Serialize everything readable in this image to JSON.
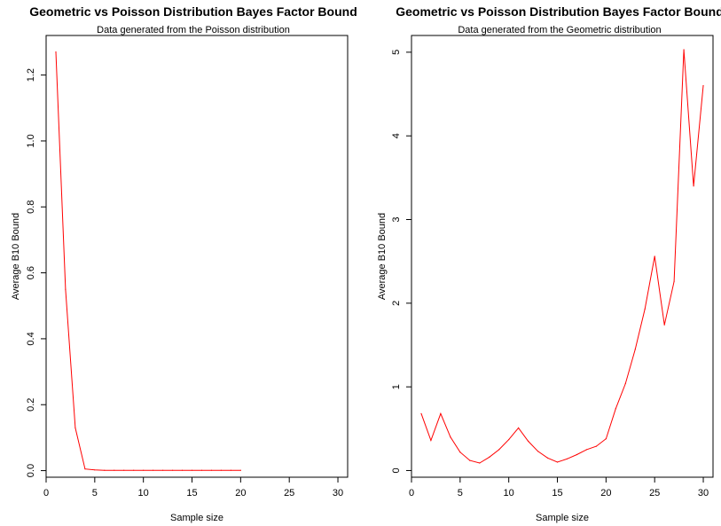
{
  "chart_data": [
    {
      "type": "line",
      "title": "Geometric vs Poisson Distribution Bayes Factor Bound",
      "subtitle": "Data generated from the Poisson distribution",
      "xlabel": "Sample size",
      "ylabel": "Average B10 Bound",
      "xlim": [
        0,
        31
      ],
      "ylim": [
        -0.02,
        1.32
      ],
      "xticks": [
        0,
        5,
        10,
        15,
        20,
        25,
        30
      ],
      "yticks": [
        0.0,
        0.2,
        0.4,
        0.6,
        0.8,
        1.0,
        1.2
      ],
      "ytick_labels": [
        "0.0",
        "0.2",
        "0.4",
        "0.6",
        "0.8",
        "1.0",
        "1.2"
      ],
      "grid": false,
      "series": [
        {
          "color": "#ff0000",
          "x": [
            1,
            2,
            3,
            4,
            5,
            6,
            7,
            8,
            9,
            10,
            11,
            12,
            13,
            14,
            15,
            16,
            17,
            18,
            19,
            20
          ],
          "y": [
            1.27,
            0.55,
            0.13,
            0.005,
            0.002,
            0.001,
            0.001,
            0.001,
            0.001,
            0.001,
            0.001,
            0.001,
            0.001,
            0.001,
            0.001,
            0.001,
            0.001,
            0.001,
            0.001,
            0.001
          ]
        }
      ]
    },
    {
      "type": "line",
      "title": "Geometric vs Poisson Distribution Bayes Factor Bound",
      "subtitle": "Data generated from the Geometric distribution",
      "xlabel": "Sample size",
      "ylabel": "Average B10 Bound",
      "xlim": [
        0,
        31
      ],
      "ylim": [
        -0.08,
        5.2
      ],
      "xticks": [
        0,
        5,
        10,
        15,
        20,
        25,
        30
      ],
      "yticks": [
        0,
        1,
        2,
        3,
        4,
        5
      ],
      "ytick_labels": [
        "0",
        "1",
        "2",
        "3",
        "4",
        "5"
      ],
      "grid": false,
      "series": [
        {
          "color": "#ff0000",
          "x": [
            1,
            2,
            3,
            4,
            5,
            6,
            7,
            8,
            9,
            10,
            11,
            12,
            13,
            14,
            15,
            16,
            17,
            18,
            19,
            20,
            21,
            22,
            23,
            24,
            25,
            26,
            27,
            28,
            29,
            30
          ],
          "y": [
            0.68,
            0.36,
            0.68,
            0.4,
            0.22,
            0.12,
            0.09,
            0.16,
            0.25,
            0.37,
            0.51,
            0.35,
            0.23,
            0.15,
            0.1,
            0.14,
            0.19,
            0.25,
            0.29,
            0.38,
            0.74,
            1.04,
            1.45,
            1.93,
            2.56,
            1.74,
            2.26,
            5.03,
            3.4,
            4.6
          ]
        }
      ]
    }
  ]
}
